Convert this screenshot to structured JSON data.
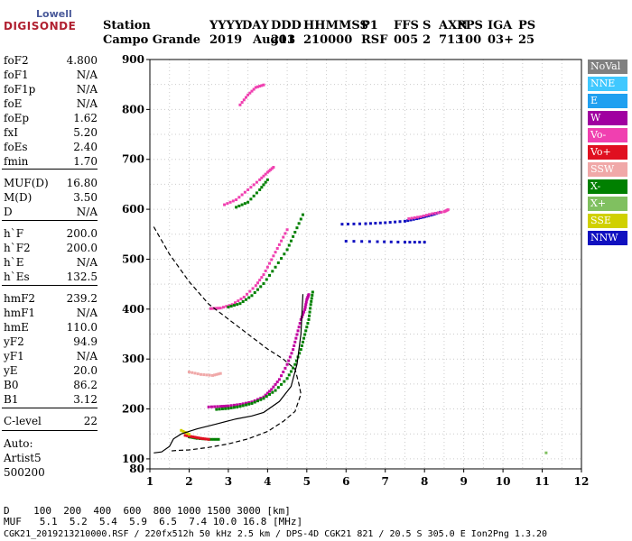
{
  "logo": {
    "line1": "Lowell",
    "line2": "DIGISONDE"
  },
  "header": {
    "row1": [
      "Station",
      "YYYY",
      "DAY",
      "DDD",
      "HHMMSS",
      "P1",
      "FFS",
      "S",
      "AXN",
      "PPS",
      "IGA",
      "PS"
    ],
    "row2": [
      "Campo Grande",
      "2019",
      "Aug01",
      "213",
      "210000",
      "RSF",
      "005",
      "2",
      "713",
      "100",
      "03+",
      "25"
    ]
  },
  "params": [
    {
      "k": "foF2",
      "v": "4.800"
    },
    {
      "k": "foF1",
      "v": "N/A"
    },
    {
      "k": "foF1p",
      "v": "N/A"
    },
    {
      "k": "foE",
      "v": "N/A"
    },
    {
      "k": "foEp",
      "v": "1.62"
    },
    {
      "k": "fxI",
      "v": "5.20"
    },
    {
      "k": "foEs",
      "v": "2.40"
    },
    {
      "k": "fmin",
      "v": "1.70"
    },
    {
      "k": "MUF(D)",
      "v": "16.80"
    },
    {
      "k": "M(D)",
      "v": "3.50"
    },
    {
      "k": "D",
      "v": "N/A"
    },
    {
      "k": "h`F",
      "v": "200.0"
    },
    {
      "k": "h`F2",
      "v": "200.0"
    },
    {
      "k": "h`E",
      "v": "N/A"
    },
    {
      "k": "h`Es",
      "v": "132.5"
    },
    {
      "k": "hmF2",
      "v": "239.2"
    },
    {
      "k": "hmF1",
      "v": "N/A"
    },
    {
      "k": "hmE",
      "v": "110.0"
    },
    {
      "k": "yF2",
      "v": "94.9"
    },
    {
      "k": "yF1",
      "v": "N/A"
    },
    {
      "k": "yE",
      "v": "20.0"
    },
    {
      "k": "B0",
      "v": "86.2"
    },
    {
      "k": "B1",
      "v": "3.12"
    },
    {
      "k": "C-level",
      "v": "22"
    }
  ],
  "autoscaling": {
    "line1": "Auto:",
    "line2": "Artist5",
    "line3": "500200"
  },
  "legend": [
    {
      "label": "NoVal",
      "color": "#808080"
    },
    {
      "label": "NNE",
      "color": "#40c8ff"
    },
    {
      "label": "E",
      "color": "#20a0f0"
    },
    {
      "label": "W",
      "color": "#a000a0"
    },
    {
      "label": "Vo-",
      "color": "#f040b0"
    },
    {
      "label": "Vo+",
      "color": "#e01020"
    },
    {
      "label": "SSW",
      "color": "#f0a8a8"
    },
    {
      "label": "X-",
      "color": "#008000"
    },
    {
      "label": "X+",
      "color": "#80c060"
    },
    {
      "label": "SSE",
      "color": "#d0d000"
    },
    {
      "label": "NNW",
      "color": "#1010c0"
    }
  ],
  "bottom": {
    "line1": "D    100  200  400  600  800 1000 1500 3000 [km]",
    "line2": "MUF   5.1  5.2  5.4  5.9  6.5  7.4 10.0 16.8 [MHz]",
    "line3": "CGK21_2019213210000.RSF / 220fx512h 50 kHz 2.5 km / DPS-4D CGK21 821 / 20.5 S 305.0 E Ion2Png 1.3.20"
  },
  "chart_data": {
    "type": "scatter",
    "xlim": [
      1,
      12
    ],
    "ylim": [
      80,
      900
    ],
    "xticks": [
      1,
      2,
      3,
      4,
      5,
      6,
      7,
      8,
      9,
      10,
      11,
      12
    ],
    "yticks": [
      100,
      200,
      300,
      400,
      500,
      600,
      700,
      800,
      900
    ],
    "ytick_labels_shown": [
      "80",
      "100",
      "200",
      "300",
      "400",
      "500",
      "600",
      "700",
      "800",
      "900"
    ],
    "grid": true,
    "series": [
      {
        "color": "#c000a0",
        "points": [
          [
            2.5,
            205
          ],
          [
            2.8,
            206
          ],
          [
            3.0,
            207
          ],
          [
            3.3,
            210
          ],
          [
            3.6,
            215
          ],
          [
            3.9,
            225
          ],
          [
            4.1,
            240
          ],
          [
            4.3,
            260
          ],
          [
            4.5,
            290
          ],
          [
            4.65,
            320
          ],
          [
            4.75,
            350
          ],
          [
            4.85,
            380
          ],
          [
            4.95,
            400
          ],
          [
            5.0,
            420
          ],
          [
            5.05,
            430
          ]
        ]
      },
      {
        "color": "#008000",
        "points": [
          [
            2.7,
            200
          ],
          [
            3.0,
            202
          ],
          [
            3.3,
            206
          ],
          [
            3.6,
            212
          ],
          [
            3.9,
            222
          ],
          [
            4.2,
            238
          ],
          [
            4.5,
            262
          ],
          [
            4.7,
            290
          ],
          [
            4.85,
            320
          ],
          [
            4.95,
            350
          ],
          [
            5.05,
            380
          ],
          [
            5.1,
            410
          ],
          [
            5.15,
            435
          ]
        ]
      },
      {
        "color": "#f040b0",
        "points": [
          [
            2.55,
            402
          ],
          [
            2.8,
            403
          ],
          [
            3.1,
            410
          ],
          [
            3.4,
            425
          ],
          [
            3.7,
            448
          ],
          [
            3.9,
            470
          ],
          [
            4.1,
            500
          ],
          [
            4.3,
            530
          ],
          [
            4.5,
            560
          ]
        ]
      },
      {
        "color": "#008000",
        "points": [
          [
            3.0,
            405
          ],
          [
            3.3,
            412
          ],
          [
            3.6,
            428
          ],
          [
            3.9,
            452
          ],
          [
            4.2,
            485
          ],
          [
            4.5,
            520
          ],
          [
            4.7,
            555
          ],
          [
            4.9,
            590
          ]
        ]
      },
      {
        "color": "#f040b0",
        "points": [
          [
            2.9,
            610
          ],
          [
            3.2,
            620
          ],
          [
            3.5,
            640
          ],
          [
            3.8,
            660
          ],
          [
            4.0,
            675
          ],
          [
            4.15,
            685
          ]
        ]
      },
      {
        "color": "#008000",
        "points": [
          [
            3.2,
            605
          ],
          [
            3.5,
            615
          ],
          [
            3.8,
            640
          ],
          [
            4.0,
            660
          ]
        ]
      },
      {
        "color": "#f040b0",
        "points": [
          [
            3.3,
            810
          ],
          [
            3.5,
            830
          ],
          [
            3.7,
            845
          ],
          [
            3.9,
            850
          ]
        ]
      },
      {
        "color": "#1010c0",
        "points": [
          [
            5.9,
            571
          ],
          [
            6.5,
            572
          ],
          [
            7.0,
            574
          ],
          [
            7.5,
            577
          ],
          [
            7.8,
            582
          ],
          [
            8.0,
            586
          ],
          [
            8.2,
            590
          ],
          [
            8.4,
            595
          ]
        ]
      },
      {
        "color": "#f040b0",
        "points": [
          [
            7.6,
            582
          ],
          [
            7.9,
            586
          ],
          [
            8.2,
            592
          ],
          [
            8.5,
            596
          ],
          [
            8.6,
            600
          ]
        ]
      },
      {
        "color": "#1010c0",
        "points": [
          [
            6.0,
            537
          ],
          [
            6.8,
            536
          ],
          [
            7.5,
            535
          ],
          [
            8.0,
            535
          ]
        ]
      },
      {
        "color": "#f0a8a8",
        "points": [
          [
            2.0,
            275
          ],
          [
            2.3,
            270
          ],
          [
            2.6,
            268
          ],
          [
            2.8,
            272
          ]
        ]
      },
      {
        "color": "#008000",
        "points": [
          [
            2.0,
            145
          ],
          [
            2.2,
            142
          ],
          [
            2.5,
            140
          ],
          [
            2.75,
            140
          ]
        ]
      },
      {
        "color": "#e01020",
        "points": [
          [
            1.9,
            148
          ],
          [
            2.1,
            145
          ],
          [
            2.3,
            142
          ],
          [
            2.5,
            140
          ]
        ]
      },
      {
        "color": "#d0d000",
        "points": [
          [
            1.8,
            158
          ],
          [
            2.0,
            150
          ]
        ]
      },
      {
        "color": "#80c060",
        "points": [
          [
            11.1,
            113
          ]
        ]
      }
    ],
    "lines": [
      {
        "style": "solid",
        "points": [
          [
            1.1,
            112
          ],
          [
            1.3,
            114
          ],
          [
            1.5,
            125
          ],
          [
            1.6,
            140
          ],
          [
            1.8,
            150
          ],
          [
            2.2,
            160
          ],
          [
            2.7,
            170
          ],
          [
            3.2,
            180
          ],
          [
            3.6,
            186
          ],
          [
            3.9,
            193
          ],
          [
            4.3,
            215
          ],
          [
            4.6,
            245
          ],
          [
            4.75,
            290
          ],
          [
            4.85,
            350
          ],
          [
            4.9,
            430
          ]
        ]
      },
      {
        "style": "dashed",
        "points": [
          [
            1.1,
            565
          ],
          [
            1.5,
            510
          ],
          [
            2.0,
            455
          ],
          [
            2.5,
            410
          ],
          [
            3.0,
            380
          ],
          [
            3.5,
            350
          ],
          [
            4.0,
            320
          ],
          [
            4.4,
            300
          ],
          [
            4.7,
            280
          ],
          [
            4.8,
            250
          ],
          [
            4.85,
            230
          ],
          [
            4.7,
            195
          ],
          [
            4.4,
            175
          ],
          [
            4.0,
            155
          ],
          [
            3.5,
            140
          ],
          [
            3.0,
            130
          ],
          [
            2.5,
            123
          ],
          [
            2.0,
            118
          ],
          [
            1.7,
            117
          ],
          [
            1.55,
            116
          ]
        ]
      }
    ]
  }
}
